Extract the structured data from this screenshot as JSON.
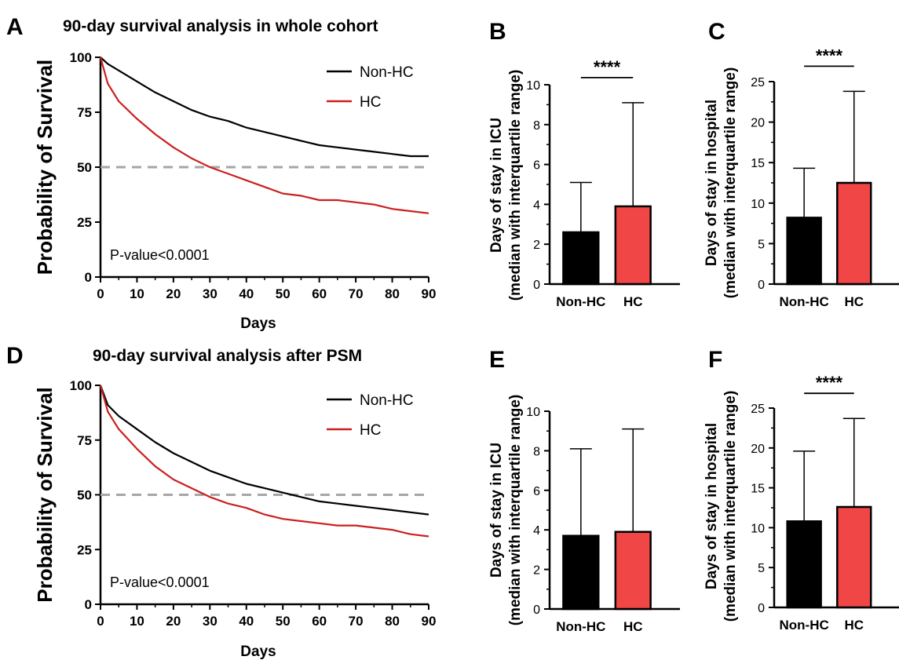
{
  "colors": {
    "nonhc": "#000000",
    "hc": "#cc1f1f",
    "hc_bar": "#f04646",
    "ref_line": "#a6a6a6"
  },
  "chart_data": [
    {
      "panel": "A",
      "type": "line",
      "title": "90-day survival analysis in whole cohort",
      "xlabel": "Days",
      "ylabel": "Probability of Survival",
      "xlim": [
        0,
        90
      ],
      "ylim": [
        0,
        100
      ],
      "xticks": [
        "0",
        "10",
        "20",
        "30",
        "40",
        "50",
        "60",
        "70",
        "80",
        "90"
      ],
      "yticks": [
        "0",
        "25",
        "50",
        "75",
        "100"
      ],
      "legend_position": "top-right",
      "reference_y": 50,
      "annotation": "P-value<0.0001",
      "x": [
        0,
        2,
        5,
        10,
        15,
        20,
        25,
        30,
        35,
        40,
        45,
        50,
        55,
        60,
        65,
        70,
        75,
        80,
        85,
        90
      ],
      "series": [
        {
          "name": "Non-HC",
          "color_key": "nonhc",
          "values": [
            100,
            97,
            94,
            89,
            84,
            80,
            76,
            73,
            71,
            68,
            66,
            64,
            62,
            60,
            59,
            58,
            57,
            56,
            55,
            55
          ]
        },
        {
          "name": "HC",
          "color_key": "hc",
          "values": [
            100,
            88,
            80,
            72,
            65,
            59,
            54,
            50,
            47,
            44,
            41,
            38,
            37,
            35,
            35,
            34,
            33,
            31,
            30,
            29
          ]
        }
      ]
    },
    {
      "panel": "B",
      "type": "bar",
      "ylabel": "Days of stay in ICU\n(median with interquartile range)",
      "categories": [
        "Non-HC",
        "HC"
      ],
      "values": [
        2.6,
        3.9
      ],
      "error_upper": [
        5.1,
        9.1
      ],
      "ylim": [
        0,
        10
      ],
      "yticks": [
        "0",
        "2",
        "4",
        "6",
        "8",
        "10"
      ],
      "significance": "****"
    },
    {
      "panel": "C",
      "type": "bar",
      "ylabel": "Days of stay in hospital\n(median with interquartile range)",
      "categories": [
        "Non-HC",
        "HC"
      ],
      "values": [
        8.2,
        12.5
      ],
      "error_upper": [
        14.3,
        23.8
      ],
      "ylim": [
        0,
        25
      ],
      "yticks": [
        "0",
        "5",
        "10",
        "15",
        "20",
        "25"
      ],
      "significance": "****"
    },
    {
      "panel": "D",
      "type": "line",
      "title": "90-day survival analysis after PSM",
      "xlabel": "Days",
      "ylabel": "Probability of Survival",
      "xlim": [
        0,
        90
      ],
      "ylim": [
        0,
        100
      ],
      "xticks": [
        "0",
        "10",
        "20",
        "30",
        "40",
        "50",
        "60",
        "70",
        "80",
        "90"
      ],
      "yticks": [
        "0",
        "25",
        "50",
        "75",
        "100"
      ],
      "legend_position": "top-right",
      "reference_y": 50,
      "annotation": "P-value<0.0001",
      "x": [
        0,
        2,
        5,
        10,
        15,
        20,
        25,
        30,
        35,
        40,
        45,
        50,
        55,
        60,
        65,
        70,
        75,
        80,
        85,
        90
      ],
      "series": [
        {
          "name": "Non-HC",
          "color_key": "nonhc",
          "values": [
            100,
            91,
            86,
            80,
            74,
            69,
            65,
            61,
            58,
            55,
            53,
            51,
            49,
            47,
            46,
            45,
            44,
            43,
            42,
            41
          ]
        },
        {
          "name": "HC",
          "color_key": "hc",
          "values": [
            100,
            88,
            80,
            71,
            63,
            57,
            53,
            49,
            46,
            44,
            41,
            39,
            38,
            37,
            36,
            36,
            35,
            34,
            32,
            31
          ]
        }
      ]
    },
    {
      "panel": "E",
      "type": "bar",
      "ylabel": "Days of stay in ICU\n(median with interquartile range)",
      "categories": [
        "Non-HC",
        "HC"
      ],
      "values": [
        3.7,
        3.9
      ],
      "error_upper": [
        8.1,
        9.1
      ],
      "ylim": [
        0,
        10
      ],
      "yticks": [
        "0",
        "2",
        "4",
        "6",
        "8",
        "10"
      ],
      "significance": ""
    },
    {
      "panel": "F",
      "type": "bar",
      "ylabel": "Days of stay in hospital\n(median with interquartile range)",
      "categories": [
        "Non-HC",
        "HC"
      ],
      "values": [
        10.8,
        12.6
      ],
      "error_upper": [
        19.6,
        23.7
      ],
      "ylim": [
        0,
        25
      ],
      "yticks": [
        "0",
        "5",
        "10",
        "15",
        "20",
        "25"
      ],
      "significance": "****"
    }
  ]
}
